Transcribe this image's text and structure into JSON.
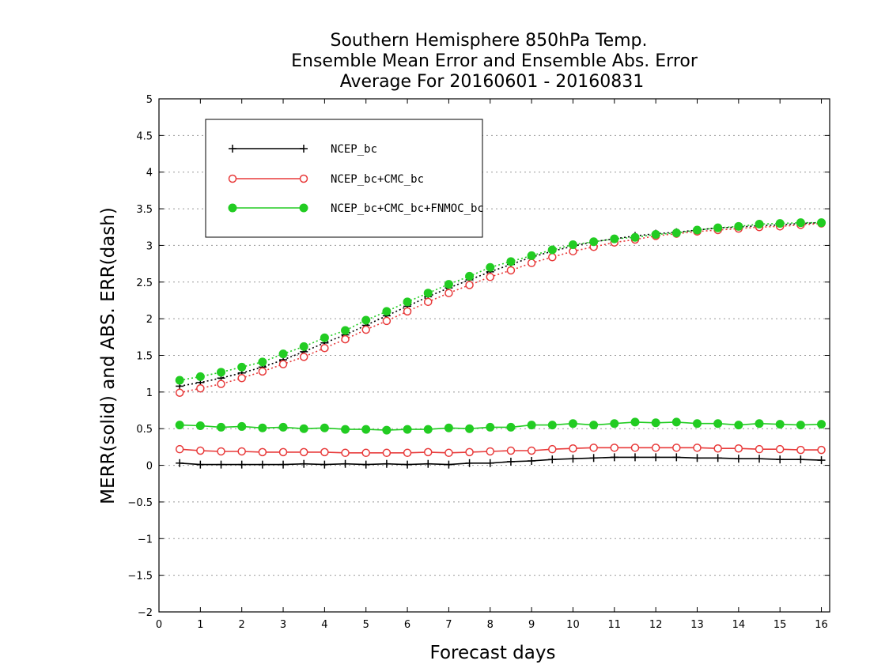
{
  "chart_data": {
    "type": "line",
    "title": [
      "Southern Hemisphere 850hPa Temp.",
      "Ensemble Mean Error and Ensemble Abs. Error",
      "Average For 20160601 - 20160831"
    ],
    "xlabel": "Forecast days",
    "ylabel": "MERR(solid) and ABS. ERR(dash)",
    "xlim": [
      0,
      16.2
    ],
    "ylim": [
      -2,
      5
    ],
    "xticks": [
      0,
      1,
      2,
      3,
      4,
      5,
      6,
      7,
      8,
      9,
      10,
      11,
      12,
      13,
      14,
      15,
      16
    ],
    "yticks": [
      5,
      4.5,
      4,
      3.5,
      3,
      2.5,
      2,
      1.5,
      1,
      0.5,
      0,
      -0.5,
      -1,
      -1.5,
      -2
    ],
    "grid": "horizontal dotted",
    "legend_position": "top-left",
    "x": [
      0.5,
      1,
      1.5,
      2,
      2.5,
      3,
      3.5,
      4,
      4.5,
      5,
      5.5,
      6,
      6.5,
      7,
      7.5,
      8,
      8.5,
      9,
      9.5,
      10,
      10.5,
      11,
      11.5,
      12,
      12.5,
      13,
      13.5,
      14,
      14.5,
      15,
      15.5,
      16
    ],
    "series": [
      {
        "name": "NCEP_bc",
        "color": "#000000",
        "marker": "plus",
        "merr": [
          0.03,
          0.01,
          0.01,
          0.01,
          0.01,
          0.01,
          0.02,
          0.01,
          0.02,
          0.01,
          0.02,
          0.01,
          0.02,
          0.01,
          0.03,
          0.03,
          0.05,
          0.06,
          0.08,
          0.09,
          0.1,
          0.11,
          0.11,
          0.11,
          0.11,
          0.1,
          0.1,
          0.09,
          0.09,
          0.08,
          0.08,
          0.07
        ],
        "abs_err": [
          1.08,
          1.13,
          1.19,
          1.26,
          1.34,
          1.44,
          1.55,
          1.67,
          1.78,
          1.91,
          2.04,
          2.17,
          2.3,
          2.42,
          2.53,
          2.64,
          2.74,
          2.84,
          2.92,
          2.99,
          3.05,
          3.09,
          3.13,
          3.16,
          3.18,
          3.21,
          3.24,
          3.25,
          3.27,
          3.28,
          3.3,
          3.31
        ]
      },
      {
        "name": "NCEP_bc+CMC_bc",
        "color": "#e83a3a",
        "marker": "open-circle",
        "merr": [
          0.22,
          0.2,
          0.19,
          0.19,
          0.18,
          0.18,
          0.18,
          0.18,
          0.17,
          0.17,
          0.17,
          0.17,
          0.18,
          0.17,
          0.18,
          0.19,
          0.2,
          0.2,
          0.22,
          0.23,
          0.24,
          0.24,
          0.24,
          0.24,
          0.24,
          0.24,
          0.23,
          0.23,
          0.22,
          0.22,
          0.21,
          0.21
        ],
        "abs_err": [
          0.99,
          1.05,
          1.11,
          1.19,
          1.28,
          1.38,
          1.48,
          1.6,
          1.72,
          1.85,
          1.97,
          2.1,
          2.23,
          2.35,
          2.46,
          2.57,
          2.66,
          2.76,
          2.84,
          2.92,
          2.98,
          3.04,
          3.08,
          3.13,
          3.16,
          3.19,
          3.21,
          3.23,
          3.25,
          3.26,
          3.28,
          3.3
        ]
      },
      {
        "name": "NCEP_bc+CMC_bc+FNMOC_bc",
        "color": "#22cc22",
        "marker": "filled-circle",
        "merr": [
          0.55,
          0.54,
          0.52,
          0.53,
          0.51,
          0.52,
          0.5,
          0.51,
          0.49,
          0.49,
          0.48,
          0.49,
          0.49,
          0.51,
          0.5,
          0.52,
          0.52,
          0.55,
          0.55,
          0.57,
          0.55,
          0.57,
          0.59,
          0.58,
          0.59,
          0.57,
          0.57,
          0.55,
          0.57,
          0.56,
          0.55,
          0.56
        ],
        "abs_err": [
          1.16,
          1.21,
          1.27,
          1.34,
          1.41,
          1.52,
          1.62,
          1.74,
          1.84,
          1.98,
          2.1,
          2.23,
          2.35,
          2.47,
          2.58,
          2.7,
          2.78,
          2.86,
          2.94,
          3.01,
          3.05,
          3.09,
          3.11,
          3.15,
          3.17,
          3.21,
          3.24,
          3.26,
          3.29,
          3.3,
          3.31,
          3.31
        ]
      }
    ]
  }
}
